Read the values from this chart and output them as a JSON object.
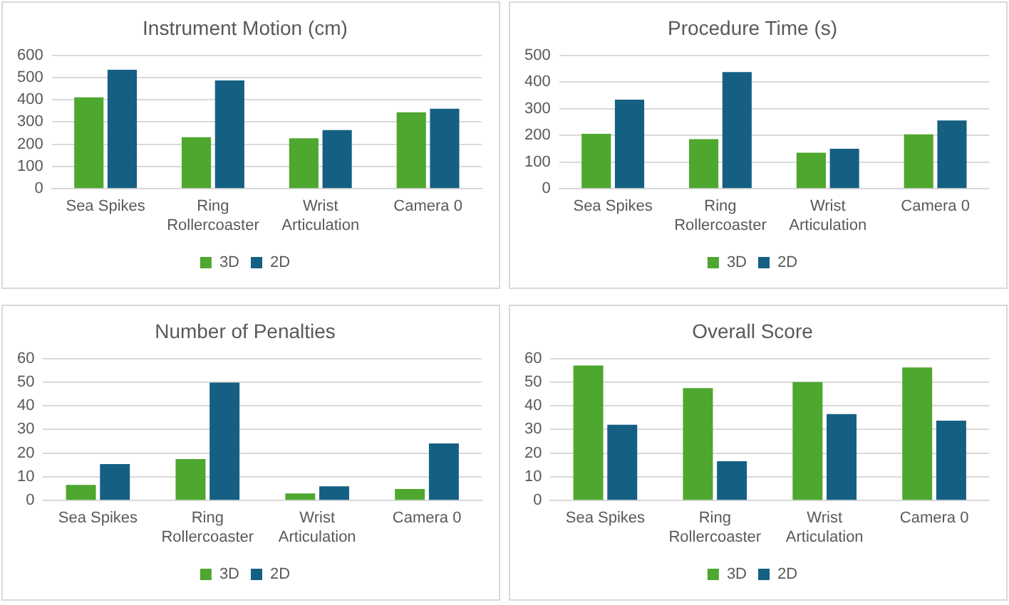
{
  "chart_data": [
    {
      "type": "bar",
      "title": "Instrument Motion (cm)",
      "categories": [
        "Sea Spikes",
        "Ring Rollercoaster",
        "Wrist Articulation",
        "Camera 0"
      ],
      "series": [
        {
          "name": "3D",
          "color": "#4ea72e",
          "values": [
            411,
            232,
            227,
            344
          ]
        },
        {
          "name": "2D",
          "color": "#156082",
          "values": [
            535,
            487,
            264,
            360
          ]
        }
      ],
      "ylim": [
        0,
        600
      ],
      "yticks": [
        0,
        100,
        200,
        300,
        400,
        500,
        600
      ],
      "grid": "y",
      "legend": "bottom"
    },
    {
      "type": "bar",
      "title": "Procedure Time (s)",
      "categories": [
        "Sea Spikes",
        "Ring Rollercoaster",
        "Wrist Articulation",
        "Camera 0"
      ],
      "series": [
        {
          "name": "3D",
          "color": "#4ea72e",
          "values": [
            206,
            186,
            135,
            204
          ]
        },
        {
          "name": "2D",
          "color": "#156082",
          "values": [
            334,
            437,
            150,
            256
          ]
        }
      ],
      "ylim": [
        0,
        500
      ],
      "yticks": [
        0,
        100,
        200,
        300,
        400,
        500
      ],
      "grid": "y",
      "legend": "bottom"
    },
    {
      "type": "bar",
      "title": "Number of Penalties",
      "categories": [
        "Sea Spikes",
        "Ring Rollercoaster",
        "Wrist Articulation",
        "Camera 0"
      ],
      "series": [
        {
          "name": "3D",
          "color": "#4ea72e",
          "values": [
            6.6,
            17.5,
            3,
            4.9
          ]
        },
        {
          "name": "2D",
          "color": "#156082",
          "values": [
            15.4,
            49.8,
            6,
            24.1
          ]
        }
      ],
      "ylim": [
        0,
        60
      ],
      "yticks": [
        0,
        10,
        20,
        30,
        40,
        50,
        60
      ],
      "grid": "y",
      "legend": "bottom"
    },
    {
      "type": "bar",
      "title": "Overall Score",
      "categories": [
        "Sea Spikes",
        "Ring Rollercoaster",
        "Wrist Articulation",
        "Camera 0"
      ],
      "series": [
        {
          "name": "3D",
          "color": "#4ea72e",
          "values": [
            57,
            47.5,
            50,
            56.2
          ]
        },
        {
          "name": "2D",
          "color": "#156082",
          "values": [
            32,
            16.6,
            36.5,
            33.7
          ]
        }
      ],
      "ylim": [
        0,
        60
      ],
      "yticks": [
        0,
        10,
        20,
        30,
        40,
        50,
        60
      ],
      "grid": "y",
      "legend": "bottom"
    }
  ]
}
